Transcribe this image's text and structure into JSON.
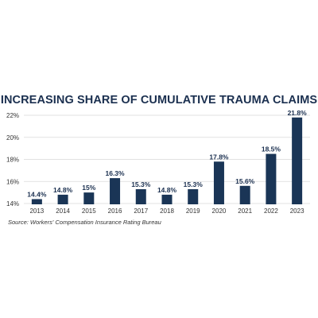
{
  "chart_data": {
    "type": "bar",
    "title": "INCREASING SHARE OF CUMULATIVE TRAUMA CLAIMS",
    "categories": [
      "2013",
      "2014",
      "2015",
      "2016",
      "2017",
      "2018",
      "2019",
      "2020",
      "2021",
      "2022",
      "2023"
    ],
    "values": [
      14.4,
      14.8,
      15.0,
      16.3,
      15.3,
      14.8,
      15.3,
      17.8,
      15.6,
      18.5,
      21.8
    ],
    "value_labels": [
      "14.4%",
      "14.8%",
      "15%",
      "16.3%",
      "15.3%",
      "14.8%",
      "15.3%",
      "17.8%",
      "15.6%",
      "18.5%",
      "21.8%"
    ],
    "y_ticks": [
      14,
      16,
      18,
      20,
      22
    ],
    "y_tick_labels": [
      "14%",
      "16%",
      "18%",
      "20%",
      "22%"
    ],
    "ylim": [
      14,
      22
    ],
    "grid": true,
    "bar_color": "#1a3556",
    "source": "Source: Workers' Compensation Insurance Rating Bureau"
  }
}
